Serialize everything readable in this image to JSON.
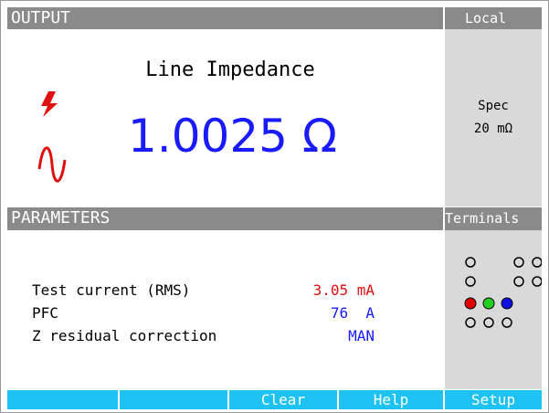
{
  "header": {
    "title": "OUTPUT",
    "status": "Local"
  },
  "output": {
    "label": "Line Impedance",
    "value": "1.0025 Ω"
  },
  "spec": {
    "label": "Spec",
    "value": "20 mΩ"
  },
  "parameters": {
    "title": "PARAMETERS",
    "rows": [
      {
        "label": "Test current (RMS)",
        "value": "3.05 mA"
      },
      {
        "label": "PFC",
        "value": "76  A"
      },
      {
        "label": "Z residual correction",
        "value": "MAN"
      }
    ]
  },
  "terminals": {
    "title": "Terminals"
  },
  "softkeys": [
    "Clear",
    "Help",
    "Setup"
  ]
}
